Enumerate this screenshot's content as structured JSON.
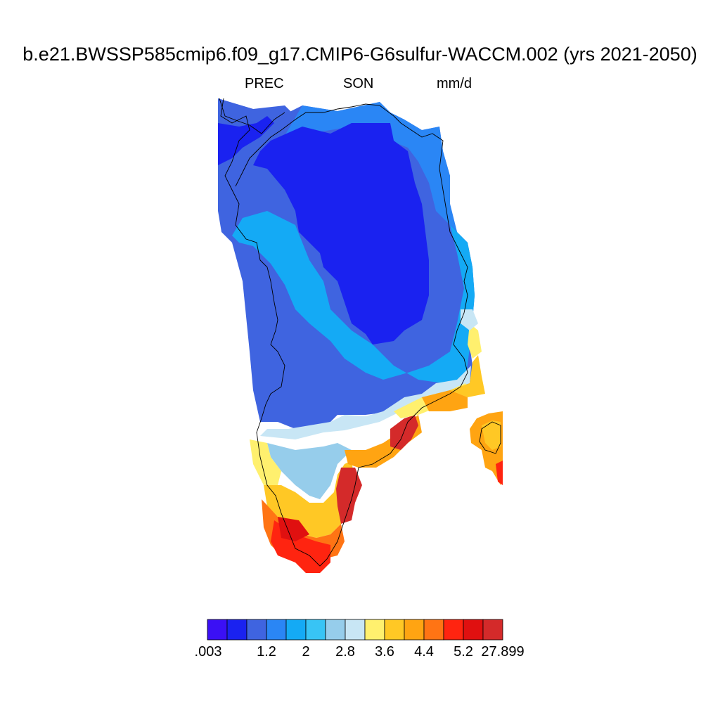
{
  "title": "b.e21.BWSSP585cmip6.f09_g17.CMIP6-G6sulfur-WACCM.002 (yrs 2021-2050)",
  "variable": "PREC",
  "season": "SON",
  "units": "mm/d",
  "colorbar": {
    "colors": [
      "#3b10f5",
      "#1a22f0",
      "#3f64e0",
      "#2a86f5",
      "#14aaf5",
      "#38c4f5",
      "#96cdeb",
      "#c8e6f5",
      "#fff06e",
      "#ffc825",
      "#ffa412",
      "#ff7414",
      "#ff2410",
      "#e01010",
      "#d42a2a"
    ],
    "labels": [
      ".003",
      "1.2",
      "2",
      "2.8",
      "3.6",
      "4.4",
      "5.2",
      "27.899"
    ]
  }
}
